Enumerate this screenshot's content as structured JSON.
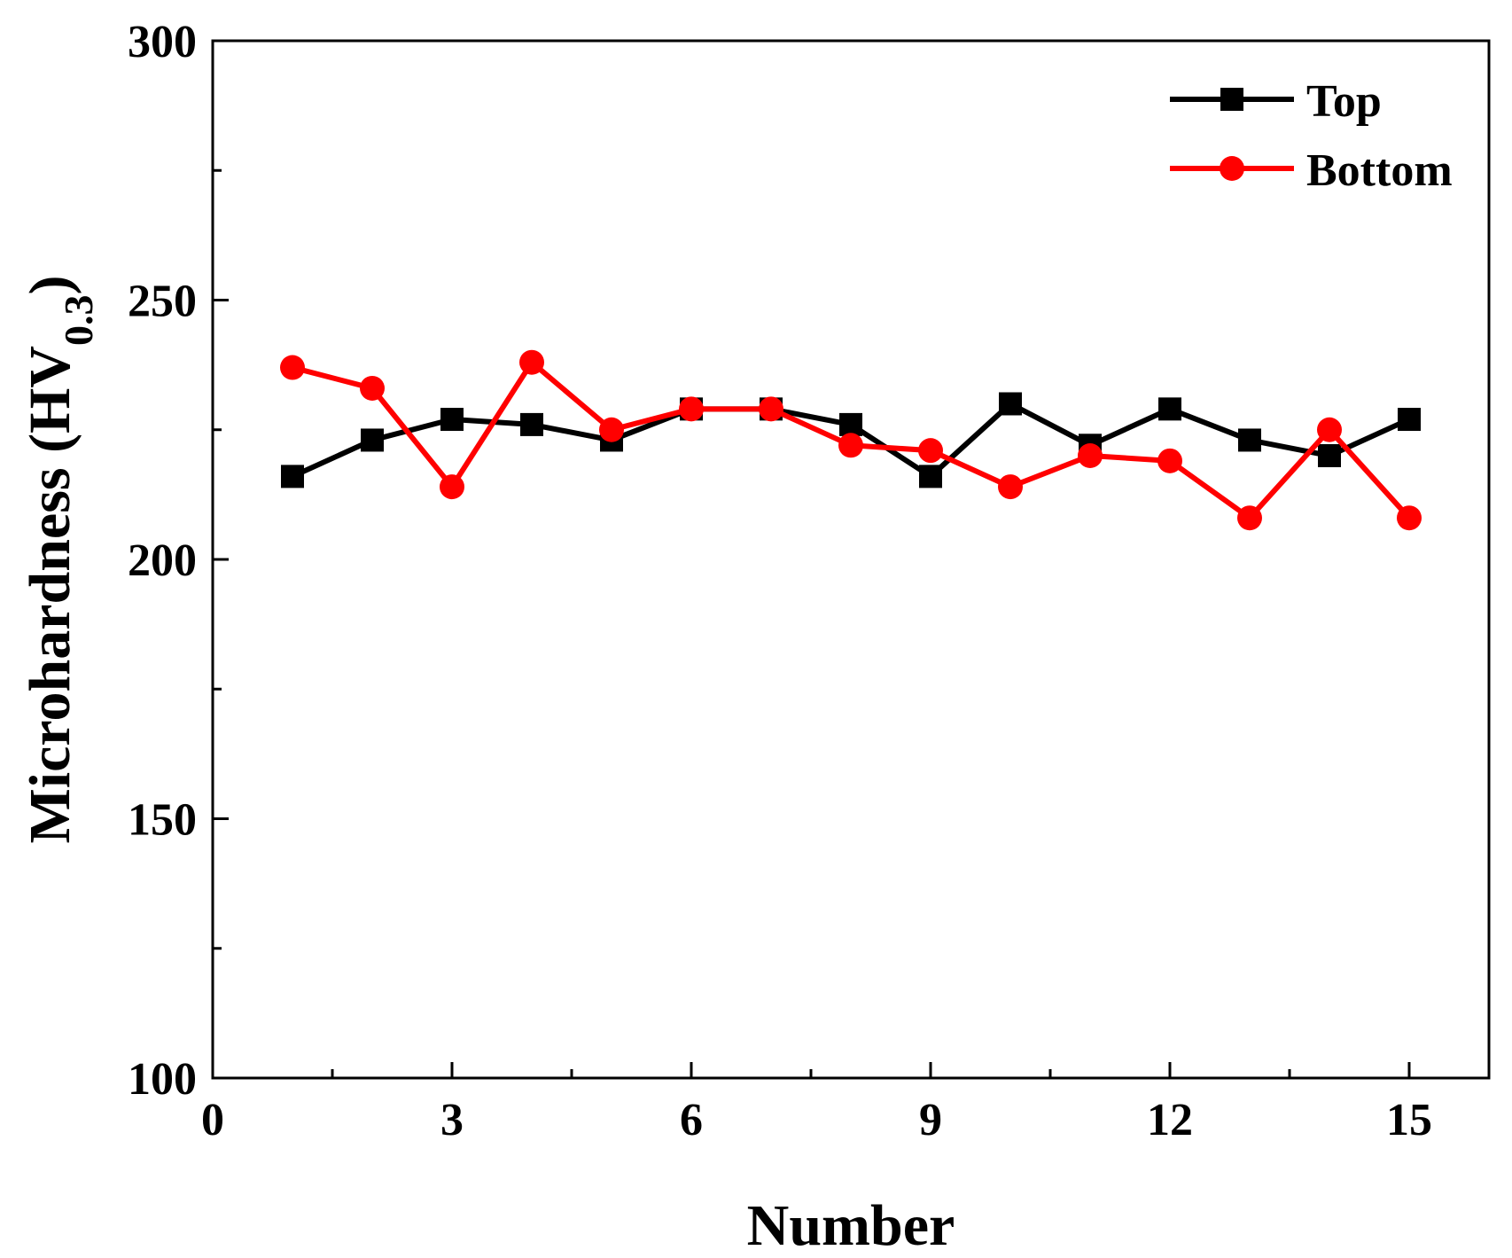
{
  "chart_data": {
    "type": "line",
    "xlabel": "Number",
    "ylabel": {
      "main": "Microhardness (HV",
      "subscript": "0.3",
      "close": ")"
    },
    "xlim": [
      0,
      16
    ],
    "ylim": [
      100,
      300
    ],
    "x_ticks": [
      0,
      3,
      6,
      9,
      12,
      15
    ],
    "x_tick_labels": [
      "0",
      "3",
      "6",
      "9",
      "12",
      "15"
    ],
    "x_minor_ticks": [
      1.5,
      4.5,
      7.5,
      10.5,
      13.5
    ],
    "y_ticks": [
      100,
      150,
      200,
      250,
      300
    ],
    "y_tick_labels": [
      "100",
      "150",
      "200",
      "250",
      "300"
    ],
    "y_minor_ticks": [
      125,
      175,
      225,
      275
    ],
    "grid": false,
    "legend_position": "top-right",
    "x": [
      1,
      2,
      3,
      4,
      5,
      6,
      7,
      8,
      9,
      10,
      11,
      12,
      13,
      14,
      15
    ],
    "series": [
      {
        "name": "Top",
        "color": "#000000",
        "marker": "square",
        "values": [
          216,
          223,
          227,
          226,
          223,
          229,
          229,
          226,
          216,
          230,
          222,
          229,
          223,
          220,
          227
        ]
      },
      {
        "name": "Bottom",
        "color": "#ff0000",
        "marker": "circle",
        "values": [
          237,
          233,
          214,
          238,
          225,
          229,
          229,
          222,
          221,
          214,
          220,
          219,
          208,
          225,
          208
        ]
      }
    ]
  }
}
